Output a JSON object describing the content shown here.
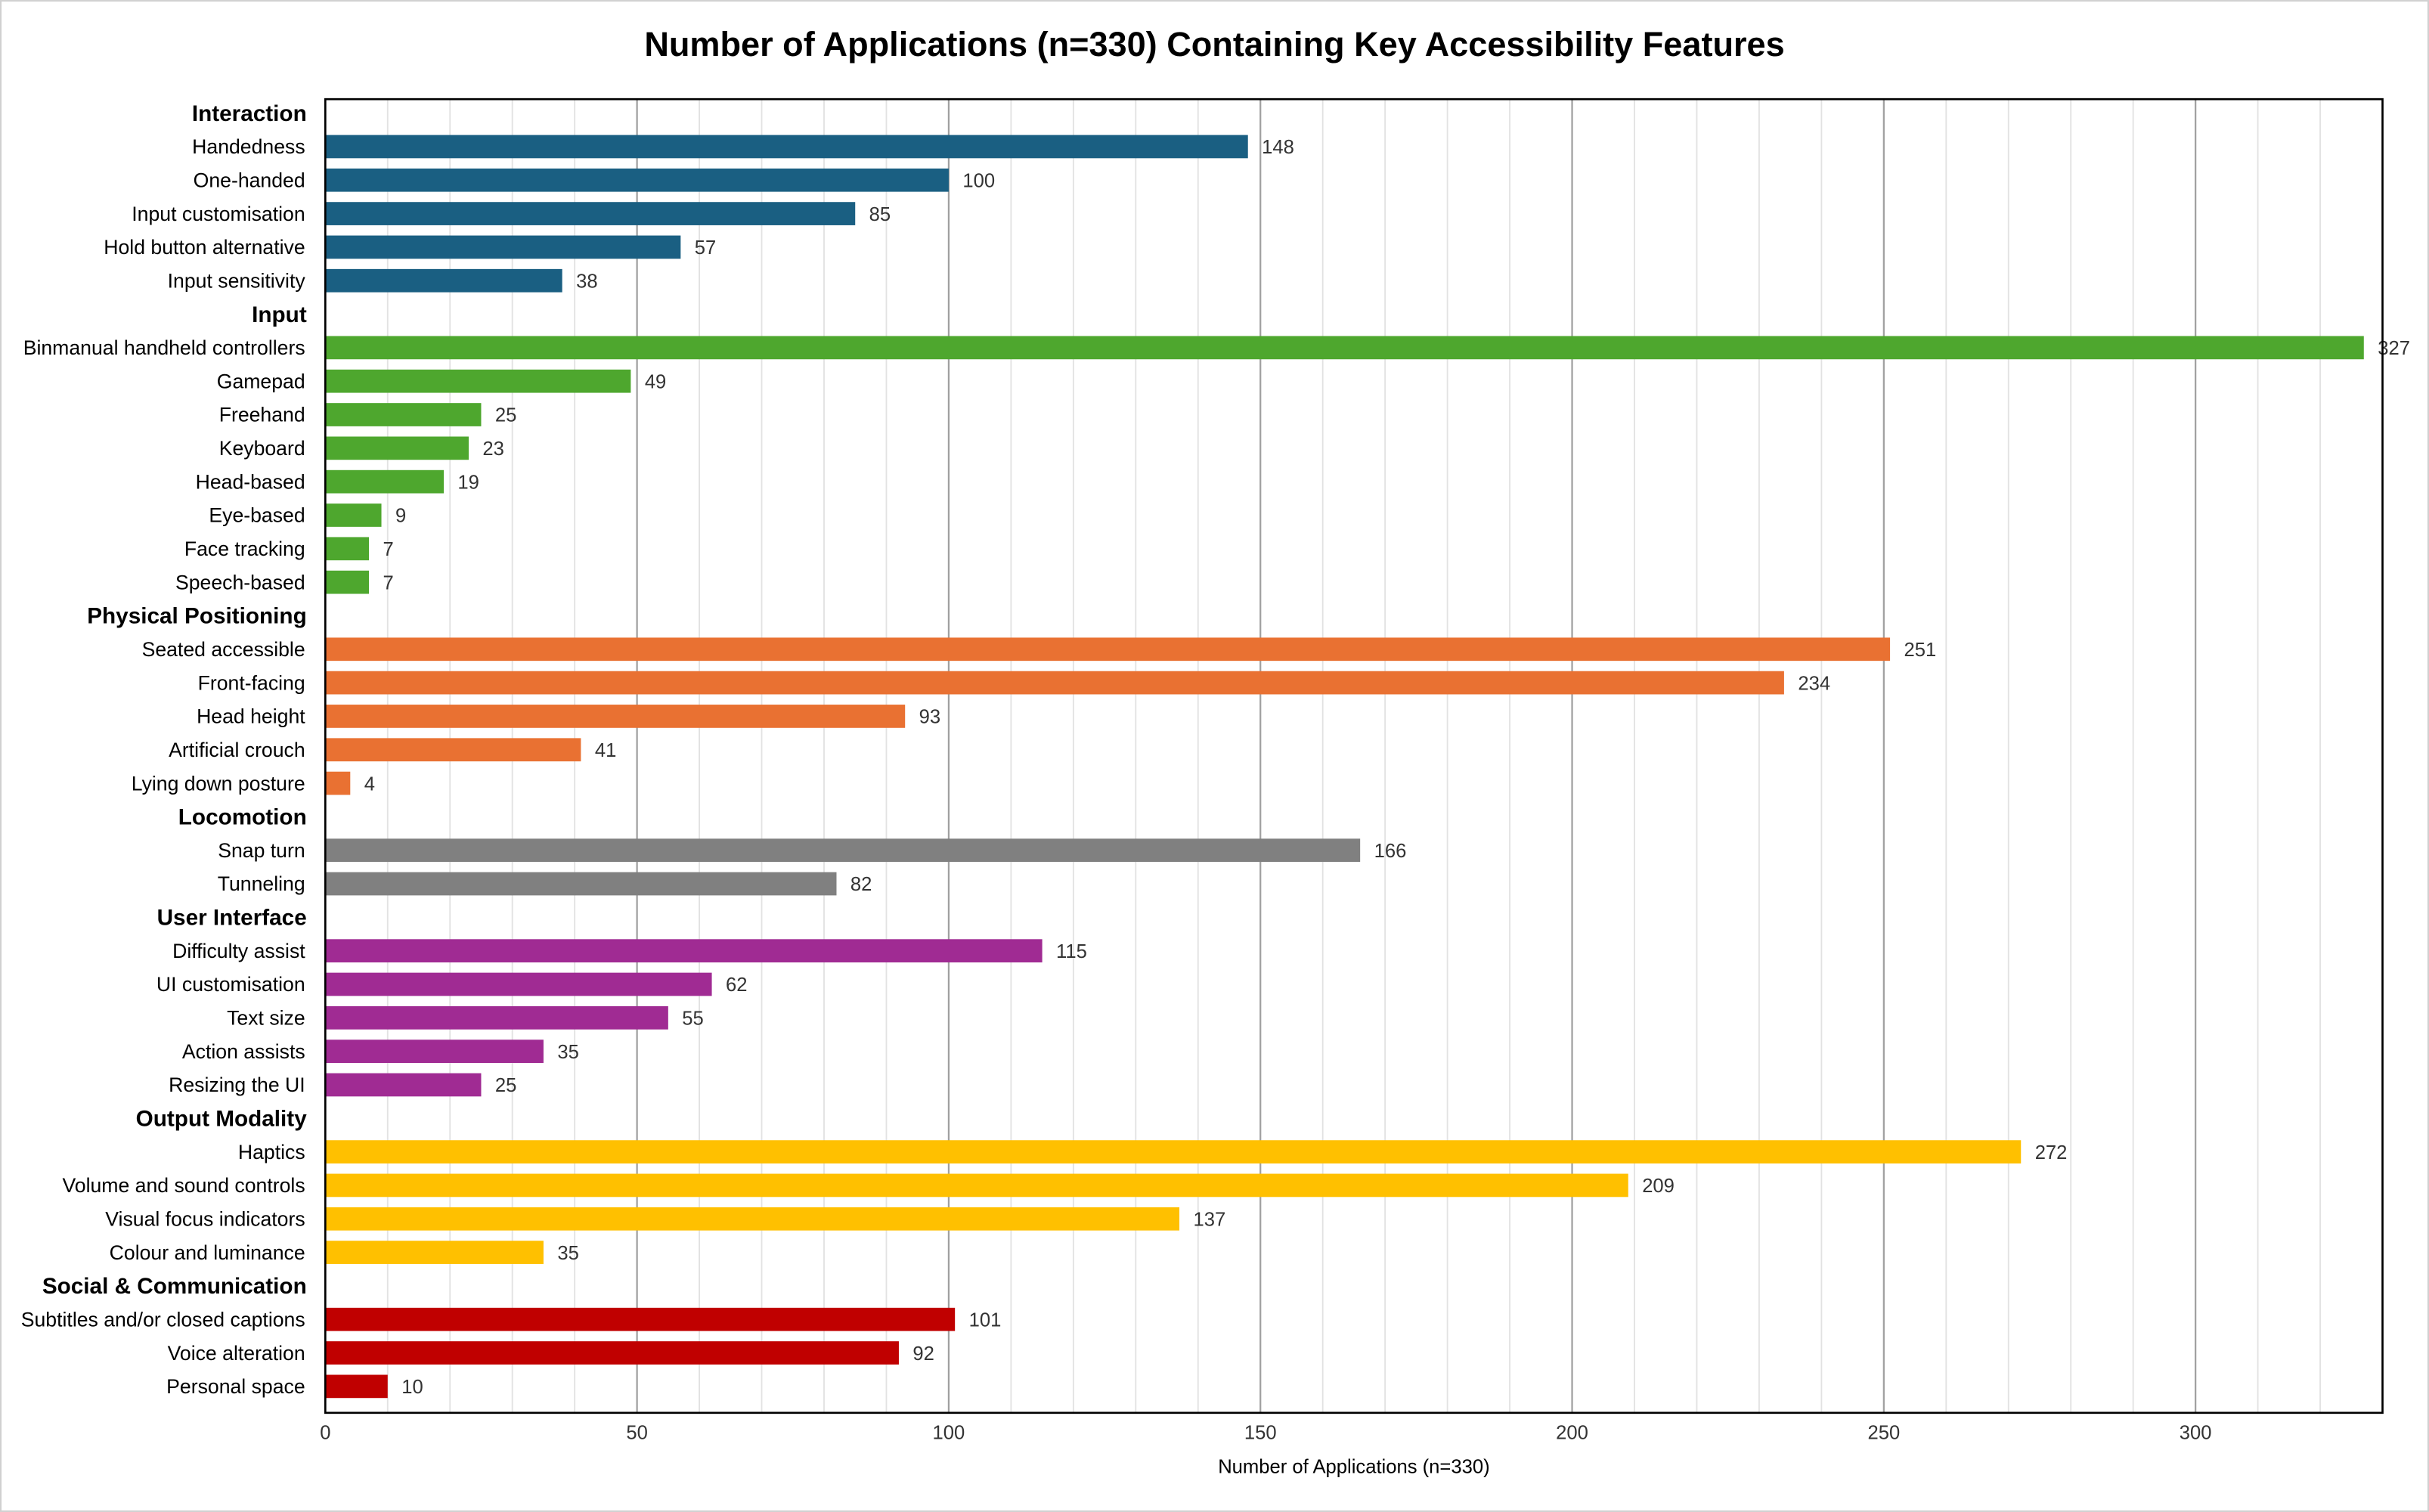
{
  "chart_data": {
    "type": "bar",
    "orientation": "horizontal",
    "title": "Number of Applications (n=330) Containing Key Accessibility Features",
    "xlabel": "Number of Applications (n=330)",
    "ylabel": "",
    "xlim": [
      0,
      330
    ],
    "xticks": [
      0,
      50,
      100,
      150,
      200,
      250,
      300
    ],
    "grid": {
      "major": 50,
      "minor": 10
    },
    "legend": "none",
    "groups": [
      {
        "name": "Interaction",
        "color": "#1a5f82",
        "categories": [
          "Handedness",
          "One-handed",
          "Input customisation",
          "Hold button alternative",
          "Input sensitivity"
        ],
        "values": [
          148,
          100,
          85,
          57,
          38
        ]
      },
      {
        "name": "Input",
        "color": "#4ea72e",
        "categories": [
          "Binmanual handheld controllers",
          "Gamepad",
          "Freehand",
          "Keyboard",
          "Head-based",
          "Eye-based",
          "Face tracking",
          "Speech-based"
        ],
        "values": [
          327,
          49,
          25,
          23,
          19,
          9,
          7,
          7
        ]
      },
      {
        "name": "Physical Positioning",
        "color": "#e97132",
        "categories": [
          "Seated accessible",
          "Front-facing",
          "Head height",
          "Artificial crouch",
          "Lying down posture"
        ],
        "values": [
          251,
          234,
          93,
          41,
          4
        ]
      },
      {
        "name": "Locomotion",
        "color": "#808080",
        "categories": [
          "Snap turn",
          "Tunneling"
        ],
        "values": [
          166,
          82
        ]
      },
      {
        "name": "User Interface",
        "color": "#a02b93",
        "categories": [
          "Difficulty assist",
          "UI customisation",
          "Text size",
          "Action assists",
          "Resizing the UI"
        ],
        "values": [
          115,
          62,
          55,
          35,
          25
        ]
      },
      {
        "name": "Output Modality",
        "color": "#ffc000",
        "categories": [
          "Haptics",
          "Volume and sound controls",
          "Visual focus indicators",
          "Colour and luminance"
        ],
        "values": [
          272,
          209,
          137,
          35
        ]
      },
      {
        "name": "Social & Communication",
        "color": "#c00000",
        "categories": [
          "Subtitles and/or closed captions",
          "Voice alteration",
          "Personal space"
        ],
        "values": [
          101,
          92,
          10
        ]
      }
    ]
  }
}
